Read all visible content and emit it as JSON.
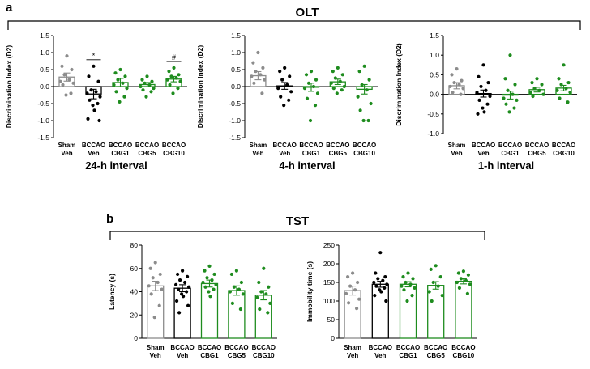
{
  "figure": {
    "panel_a_label": "a",
    "panel_b_label": "b",
    "section_a_title": "OLT",
    "section_b_title": "TST"
  },
  "colors": {
    "gray": "#8c8c8c",
    "black": "#000000",
    "green": "#1e8c1e"
  },
  "chart_data": [
    {
      "id": "olt24",
      "type": "bar",
      "subtitle": "24-h interval",
      "ylabel": "Discrimination Index (D2)",
      "ylim": [
        -1.5,
        1.5
      ],
      "yticks": [
        "-1.5",
        "-1.0",
        "-0.5",
        "0.0",
        "0.5",
        "1.0",
        "1.5"
      ],
      "categories": [
        [
          "Sham",
          "Veh"
        ],
        [
          "BCCAO",
          "Veh"
        ],
        [
          "BCCAO",
          "CBG1"
        ],
        [
          "BCCAO",
          "CBG5"
        ],
        [
          "BCCAO",
          "CBG10"
        ]
      ],
      "colors": [
        "gray",
        "black",
        "green",
        "green",
        "green"
      ],
      "means": [
        0.28,
        -0.22,
        0.12,
        0.06,
        0.22
      ],
      "sem": [
        0.12,
        0.14,
        0.12,
        0.06,
        0.08
      ],
      "points": [
        [
          0.9,
          0.6,
          0.5,
          0.35,
          0.2,
          0.15,
          0.1,
          0.05,
          -0.2,
          -0.25
        ],
        [
          0.6,
          0.3,
          0.15,
          -0.1,
          -0.15,
          -0.2,
          -0.3,
          -0.4,
          -0.5,
          -0.55,
          -0.7,
          -0.95,
          -1.0
        ],
        [
          0.5,
          0.4,
          0.3,
          0.2,
          0.1,
          0.05,
          -0.05,
          -0.15,
          -0.3,
          -0.45
        ],
        [
          0.3,
          0.2,
          0.15,
          0.1,
          0.05,
          0.0,
          -0.05,
          -0.1,
          -0.15,
          -0.3
        ],
        [
          0.55,
          0.45,
          0.35,
          0.3,
          0.25,
          0.2,
          0.15,
          0.05,
          -0.05,
          -0.2
        ]
      ],
      "annotations": [
        {
          "text": "*",
          "category": 1
        },
        {
          "text": "#",
          "category": 4
        }
      ]
    },
    {
      "id": "olt4",
      "type": "bar",
      "subtitle": "4-h interval",
      "ylabel": "Discrimination Index (D2)",
      "ylim": [
        -1.5,
        1.5
      ],
      "yticks": [
        "-1.5",
        "-1.0",
        "-0.5",
        "0.0",
        "0.5",
        "1.0",
        "1.5"
      ],
      "categories": [
        [
          "Sham",
          "Veh"
        ],
        [
          "BCCAO",
          "Veh"
        ],
        [
          "BCCAO",
          "CBG1"
        ],
        [
          "BCCAO",
          "CBG5"
        ],
        [
          "BCCAO",
          "CBG10"
        ]
      ],
      "colors": [
        "gray",
        "black",
        "green",
        "green",
        "green"
      ],
      "means": [
        0.32,
        0.02,
        -0.02,
        0.14,
        -0.08
      ],
      "sem": [
        0.12,
        0.1,
        0.12,
        0.08,
        0.14
      ],
      "points": [
        [
          1.0,
          0.7,
          0.55,
          0.45,
          0.35,
          0.3,
          0.2,
          0.1,
          -0.2
        ],
        [
          0.55,
          0.45,
          0.3,
          0.2,
          0.05,
          -0.05,
          -0.15,
          -0.3,
          -0.4,
          -0.55
        ],
        [
          0.45,
          0.35,
          0.2,
          0.1,
          0.0,
          -0.05,
          -0.2,
          -0.35,
          -0.55,
          -1.0
        ],
        [
          0.55,
          0.45,
          0.35,
          0.25,
          0.15,
          0.1,
          0.0,
          -0.05,
          -0.1,
          -0.2
        ],
        [
          0.6,
          0.45,
          0.2,
          0.05,
          -0.1,
          -0.3,
          -0.5,
          -0.7,
          -1.0,
          -1.0
        ]
      ],
      "annotations": []
    },
    {
      "id": "olt1",
      "type": "bar",
      "subtitle": "1-h interval",
      "ylabel": "Discrimination Index (D2)",
      "ylim": [
        -1.0,
        1.5
      ],
      "yticks": [
        "-1.0",
        "-0.5",
        "0.0",
        "0.5",
        "1.0",
        "1.5"
      ],
      "categories": [
        [
          "Sham",
          "Veh"
        ],
        [
          "BCCAO",
          "Veh"
        ],
        [
          "BCCAO",
          "CBG1"
        ],
        [
          "BCCAO",
          "CBG5"
        ],
        [
          "BCCAO",
          "CBG10"
        ]
      ],
      "colors": [
        "gray",
        "black",
        "green",
        "green",
        "green"
      ],
      "means": [
        0.22,
        0.02,
        -0.02,
        0.12,
        0.16
      ],
      "sem": [
        0.08,
        0.09,
        0.1,
        0.06,
        0.07
      ],
      "points": [
        [
          0.65,
          0.5,
          0.35,
          0.3,
          0.25,
          0.2,
          0.15,
          0.05,
          0.0
        ],
        [
          0.75,
          0.45,
          0.3,
          0.2,
          0.1,
          0.05,
          -0.05,
          -0.15,
          -0.25,
          -0.35,
          -0.45,
          -0.5
        ],
        [
          1.0,
          0.4,
          0.25,
          0.1,
          0.0,
          -0.1,
          -0.15,
          -0.25,
          -0.35,
          -0.45
        ],
        [
          0.4,
          0.3,
          0.25,
          0.15,
          0.1,
          0.05,
          0.0,
          -0.05
        ],
        [
          0.75,
          0.4,
          0.3,
          0.25,
          0.15,
          0.1,
          0.05,
          -0.1,
          -0.2
        ]
      ],
      "annotations": []
    },
    {
      "id": "tstlat",
      "type": "bar",
      "subtitle": "",
      "ylabel": "Latency (s)",
      "ylim": [
        0,
        80
      ],
      "yticks": [
        "0",
        "20",
        "40",
        "60",
        "80"
      ],
      "categories": [
        [
          "Sham",
          "Veh"
        ],
        [
          "BCCAO",
          "Veh"
        ],
        [
          "BCCAO",
          "CBG1"
        ],
        [
          "BCCAO",
          "CBG5"
        ],
        [
          "BCCAO",
          "CBG10"
        ]
      ],
      "colors": [
        "gray",
        "black",
        "green",
        "green",
        "green"
      ],
      "means": [
        45,
        43,
        47,
        41,
        37
      ],
      "sem": [
        4,
        3,
        3,
        4,
        4
      ],
      "points": [
        [
          65,
          60,
          55,
          52,
          48,
          45,
          42,
          38,
          28,
          18
        ],
        [
          58,
          55,
          53,
          50,
          48,
          46,
          44,
          42,
          40,
          38,
          36,
          32,
          28,
          22
        ],
        [
          62,
          58,
          55,
          52,
          50,
          48,
          46,
          44,
          42,
          40,
          36
        ],
        [
          58,
          55,
          48,
          44,
          42,
          40,
          38,
          30,
          25
        ],
        [
          60,
          48,
          44,
          40,
          38,
          35,
          30,
          25,
          22
        ]
      ],
      "annotations": []
    },
    {
      "id": "tstimm",
      "type": "bar",
      "subtitle": "",
      "ylabel": "Immobility time (s)",
      "ylim": [
        0,
        250
      ],
      "yticks": [
        "0",
        "50",
        "100",
        "150",
        "200",
        "250"
      ],
      "categories": [
        [
          "Sham",
          "Veh"
        ],
        [
          "BCCAO",
          "Veh"
        ],
        [
          "BCCAO",
          "CBG1"
        ],
        [
          "BCCAO",
          "CBG5"
        ],
        [
          "BCCAO",
          "CBG10"
        ]
      ],
      "colors": [
        "gray",
        "black",
        "green",
        "green",
        "green"
      ],
      "means": [
        128,
        145,
        145,
        142,
        153
      ],
      "sem": [
        12,
        8,
        7,
        10,
        7
      ],
      "points": [
        [
          175,
          165,
          150,
          140,
          130,
          120,
          105,
          95,
          80
        ],
        [
          230,
          175,
          165,
          160,
          155,
          150,
          145,
          140,
          135,
          130,
          125,
          115,
          100
        ],
        [
          175,
          165,
          160,
          150,
          145,
          140,
          135,
          130,
          115,
          100
        ],
        [
          195,
          185,
          165,
          150,
          140,
          125,
          115,
          100
        ],
        [
          180,
          175,
          170,
          160,
          155,
          150,
          145,
          135,
          120
        ]
      ],
      "annotations": []
    }
  ]
}
